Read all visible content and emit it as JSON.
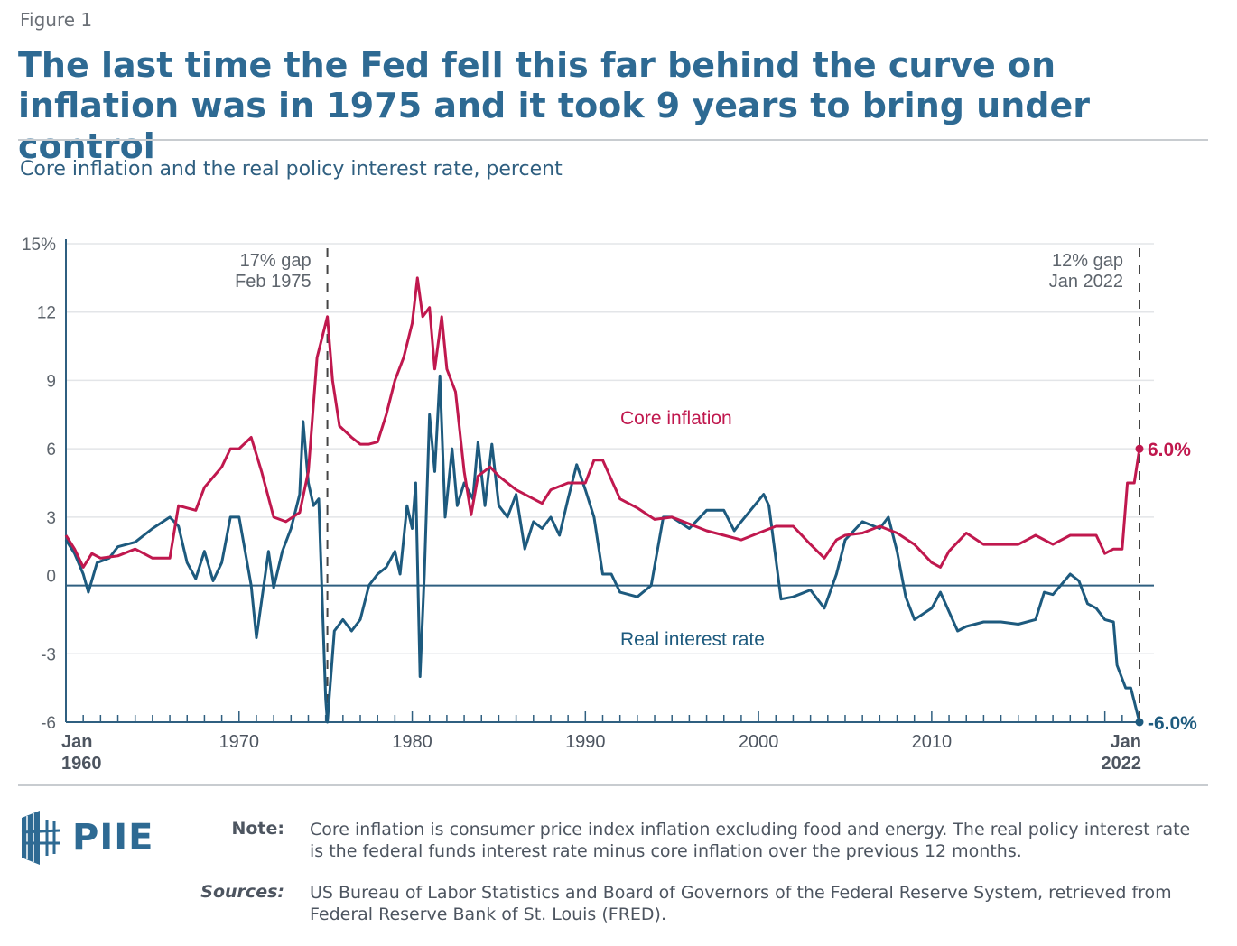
{
  "header": {
    "figure_label": "Figure 1",
    "title": "The last time the Fed fell this far behind the curve on inflation was in 1975 and it took 9 years to bring under control",
    "subtitle": "Core inflation and the real policy interest rate, percent"
  },
  "chart_data": {
    "type": "line",
    "title": "Core inflation and the real policy interest rate, percent",
    "xlabel": "",
    "ylabel": "",
    "xlim": [
      1960,
      2022
    ],
    "ylim": [
      -6,
      15
    ],
    "grid": true,
    "y_ticks": [
      {
        "value": 15,
        "label": "15%"
      },
      {
        "value": 12,
        "label": "12"
      },
      {
        "value": 9,
        "label": "9"
      },
      {
        "value": 6,
        "label": "6"
      },
      {
        "value": 3,
        "label": "3"
      },
      {
        "value": 0,
        "label": "0"
      },
      {
        "value": -3,
        "label": "-3"
      },
      {
        "value": -6,
        "label": "-6"
      }
    ],
    "x_ticks": [
      {
        "value": 1960,
        "line1": "Jan",
        "line2": "1960",
        "align": "start"
      },
      {
        "value": 1970,
        "line1": "1970",
        "line2": ""
      },
      {
        "value": 1980,
        "line1": "1980",
        "line2": ""
      },
      {
        "value": 1990,
        "line1": "1990",
        "line2": ""
      },
      {
        "value": 2000,
        "line1": "2000",
        "line2": ""
      },
      {
        "value": 2010,
        "line1": "2010",
        "line2": ""
      },
      {
        "value": 2022,
        "line1": "Jan",
        "line2": "2022",
        "align": "end"
      }
    ],
    "series": [
      {
        "name": "Core inflation",
        "color": "#c0184e",
        "x": [
          1960,
          1960.5,
          1961,
          1961.5,
          1962,
          1963,
          1964,
          1964.5,
          1965,
          1966,
          1966.5,
          1967,
          1967.5,
          1968,
          1969,
          1969.5,
          1970,
          1970.7,
          1971.3,
          1972,
          1972.7,
          1973.5,
          1974,
          1974.5,
          1975.1,
          1975.4,
          1975.8,
          1976.5,
          1977,
          1977.5,
          1978,
          1978.5,
          1979,
          1979.5,
          1980,
          1980.3,
          1980.6,
          1981,
          1981.3,
          1981.7,
          1982,
          1982.5,
          1983,
          1983.4,
          1983.8,
          1984.5,
          1985,
          1986,
          1987,
          1987.5,
          1988,
          1989,
          1990,
          1990.5,
          1991,
          1992,
          1993,
          1994,
          1995,
          1996,
          1997,
          1998,
          1999,
          2000,
          2001,
          2002,
          2003,
          2003.8,
          2004.5,
          2005,
          2006,
          2007,
          2008,
          2009,
          2010,
          2010.5,
          2011,
          2012,
          2013,
          2014,
          2015,
          2016,
          2017,
          2018,
          2019,
          2019.5,
          2020,
          2020.5,
          2021,
          2021.3,
          2021.7,
          2022
        ],
        "y": [
          2.2,
          1.6,
          0.8,
          1.4,
          1.2,
          1.3,
          1.6,
          1.4,
          1.2,
          1.2,
          3.5,
          3.4,
          3.3,
          4.3,
          5.2,
          6.0,
          6.0,
          6.5,
          5.0,
          3.0,
          2.8,
          3.2,
          5.0,
          10.0,
          11.8,
          9.0,
          7.0,
          6.5,
          6.2,
          6.2,
          6.3,
          7.5,
          9.0,
          10.0,
          11.5,
          13.5,
          11.8,
          12.2,
          9.5,
          11.8,
          9.5,
          8.5,
          5.0,
          3.1,
          4.8,
          5.2,
          4.8,
          4.2,
          3.8,
          3.6,
          4.2,
          4.5,
          4.5,
          5.5,
          5.5,
          3.8,
          3.4,
          2.9,
          3.0,
          2.7,
          2.4,
          2.2,
          2.0,
          2.3,
          2.6,
          2.6,
          1.8,
          1.2,
          2.0,
          2.2,
          2.3,
          2.6,
          2.3,
          1.8,
          1.0,
          0.8,
          1.5,
          2.3,
          1.8,
          1.8,
          1.8,
          2.2,
          1.8,
          2.2,
          2.2,
          2.2,
          1.4,
          1.6,
          1.6,
          4.5,
          4.5,
          6.0
        ],
        "label": "Core inflation",
        "end_label": "6.0%"
      },
      {
        "name": "Real interest rate",
        "color": "#1d5a7e",
        "x": [
          1960,
          1960.5,
          1961,
          1961.3,
          1961.8,
          1962.5,
          1963,
          1964,
          1965,
          1966,
          1966.5,
          1967,
          1967.5,
          1968,
          1968.5,
          1969,
          1969.5,
          1970,
          1970.7,
          1971,
          1971.7,
          1972,
          1972.5,
          1973,
          1973.5,
          1973.7,
          1974,
          1974.3,
          1974.6,
          1975.0,
          1975.1,
          1975.5,
          1976,
          1976.5,
          1977,
          1977.5,
          1978,
          1978.5,
          1979,
          1979.3,
          1979.7,
          1980,
          1980.2,
          1980.45,
          1980.7,
          1981,
          1981.3,
          1981.6,
          1981.9,
          1982.3,
          1982.6,
          1983,
          1983.5,
          1983.8,
          1984.2,
          1984.6,
          1985,
          1985.5,
          1986,
          1986.5,
          1987,
          1987.5,
          1988,
          1988.5,
          1989,
          1989.5,
          1990,
          1990.5,
          1991,
          1991.5,
          1992,
          1993,
          1993.8,
          1994.5,
          1995,
          1996,
          1997,
          1998,
          1998.6,
          1999,
          2000.3,
          2000.6,
          2001.3,
          2002,
          2003,
          2003.8,
          2004.5,
          2005,
          2006,
          2007,
          2007.5,
          2008,
          2008.5,
          2009,
          2010,
          2010.5,
          2011.5,
          2012,
          2013,
          2014,
          2015,
          2016,
          2016.5,
          2017,
          2018,
          2018.5,
          2019,
          2019.5,
          2020,
          2020.5,
          2020.7,
          2021.2,
          2021.5,
          2022
        ],
        "y": [
          2.0,
          1.4,
          0.5,
          -0.3,
          1.0,
          1.2,
          1.7,
          1.9,
          2.5,
          3.0,
          2.6,
          1.0,
          0.3,
          1.5,
          0.2,
          1.0,
          3.0,
          3.0,
          0.0,
          -2.3,
          1.5,
          -0.1,
          1.5,
          2.5,
          4.0,
          7.2,
          4.5,
          3.5,
          3.8,
          -5.0,
          -6.0,
          -2.0,
          -1.5,
          -2.0,
          -1.5,
          0.0,
          0.5,
          0.8,
          1.5,
          0.5,
          3.5,
          2.5,
          4.5,
          -4.0,
          0.5,
          7.5,
          5.0,
          9.2,
          3.0,
          6.0,
          3.5,
          4.5,
          3.8,
          6.3,
          3.5,
          6.2,
          3.5,
          3.0,
          4.0,
          1.6,
          2.8,
          2.5,
          3.0,
          2.2,
          3.8,
          5.3,
          4.2,
          3.0,
          0.5,
          0.5,
          -0.3,
          -0.5,
          0.0,
          3.0,
          3.0,
          2.5,
          3.3,
          3.3,
          2.4,
          2.8,
          4.0,
          3.5,
          -0.6,
          -0.5,
          -0.2,
          -1.0,
          0.5,
          2.0,
          2.8,
          2.5,
          3.0,
          1.5,
          -0.5,
          -1.5,
          -1.0,
          -0.3,
          -2.0,
          -1.8,
          -1.6,
          -1.6,
          -1.7,
          -1.5,
          -0.3,
          -0.4,
          0.5,
          0.2,
          -0.8,
          -1.0,
          -1.5,
          -1.6,
          -3.5,
          -4.5,
          -4.5,
          -6.0
        ],
        "label": "Real interest rate",
        "end_label": "-6.0%"
      }
    ],
    "annotations": [
      {
        "x": 1975.1,
        "line1": "17% gap",
        "line2": "Feb 1975"
      },
      {
        "x": 2022,
        "line1": "12% gap",
        "line2": "Jan 2022"
      }
    ]
  },
  "footer": {
    "logo": "PIIE",
    "note_label": "Note:",
    "note_text": "Core inflation is consumer price index inflation excluding food and energy. The real policy interest rate is the federal funds interest rate minus core inflation over the previous 12 months.",
    "sources_label": "Sources:",
    "sources_text": "US Bureau of Labor Statistics and Board of Governors of the Federal Reserve System, retrieved from Federal Reserve Bank of St. Louis (FRED)."
  }
}
